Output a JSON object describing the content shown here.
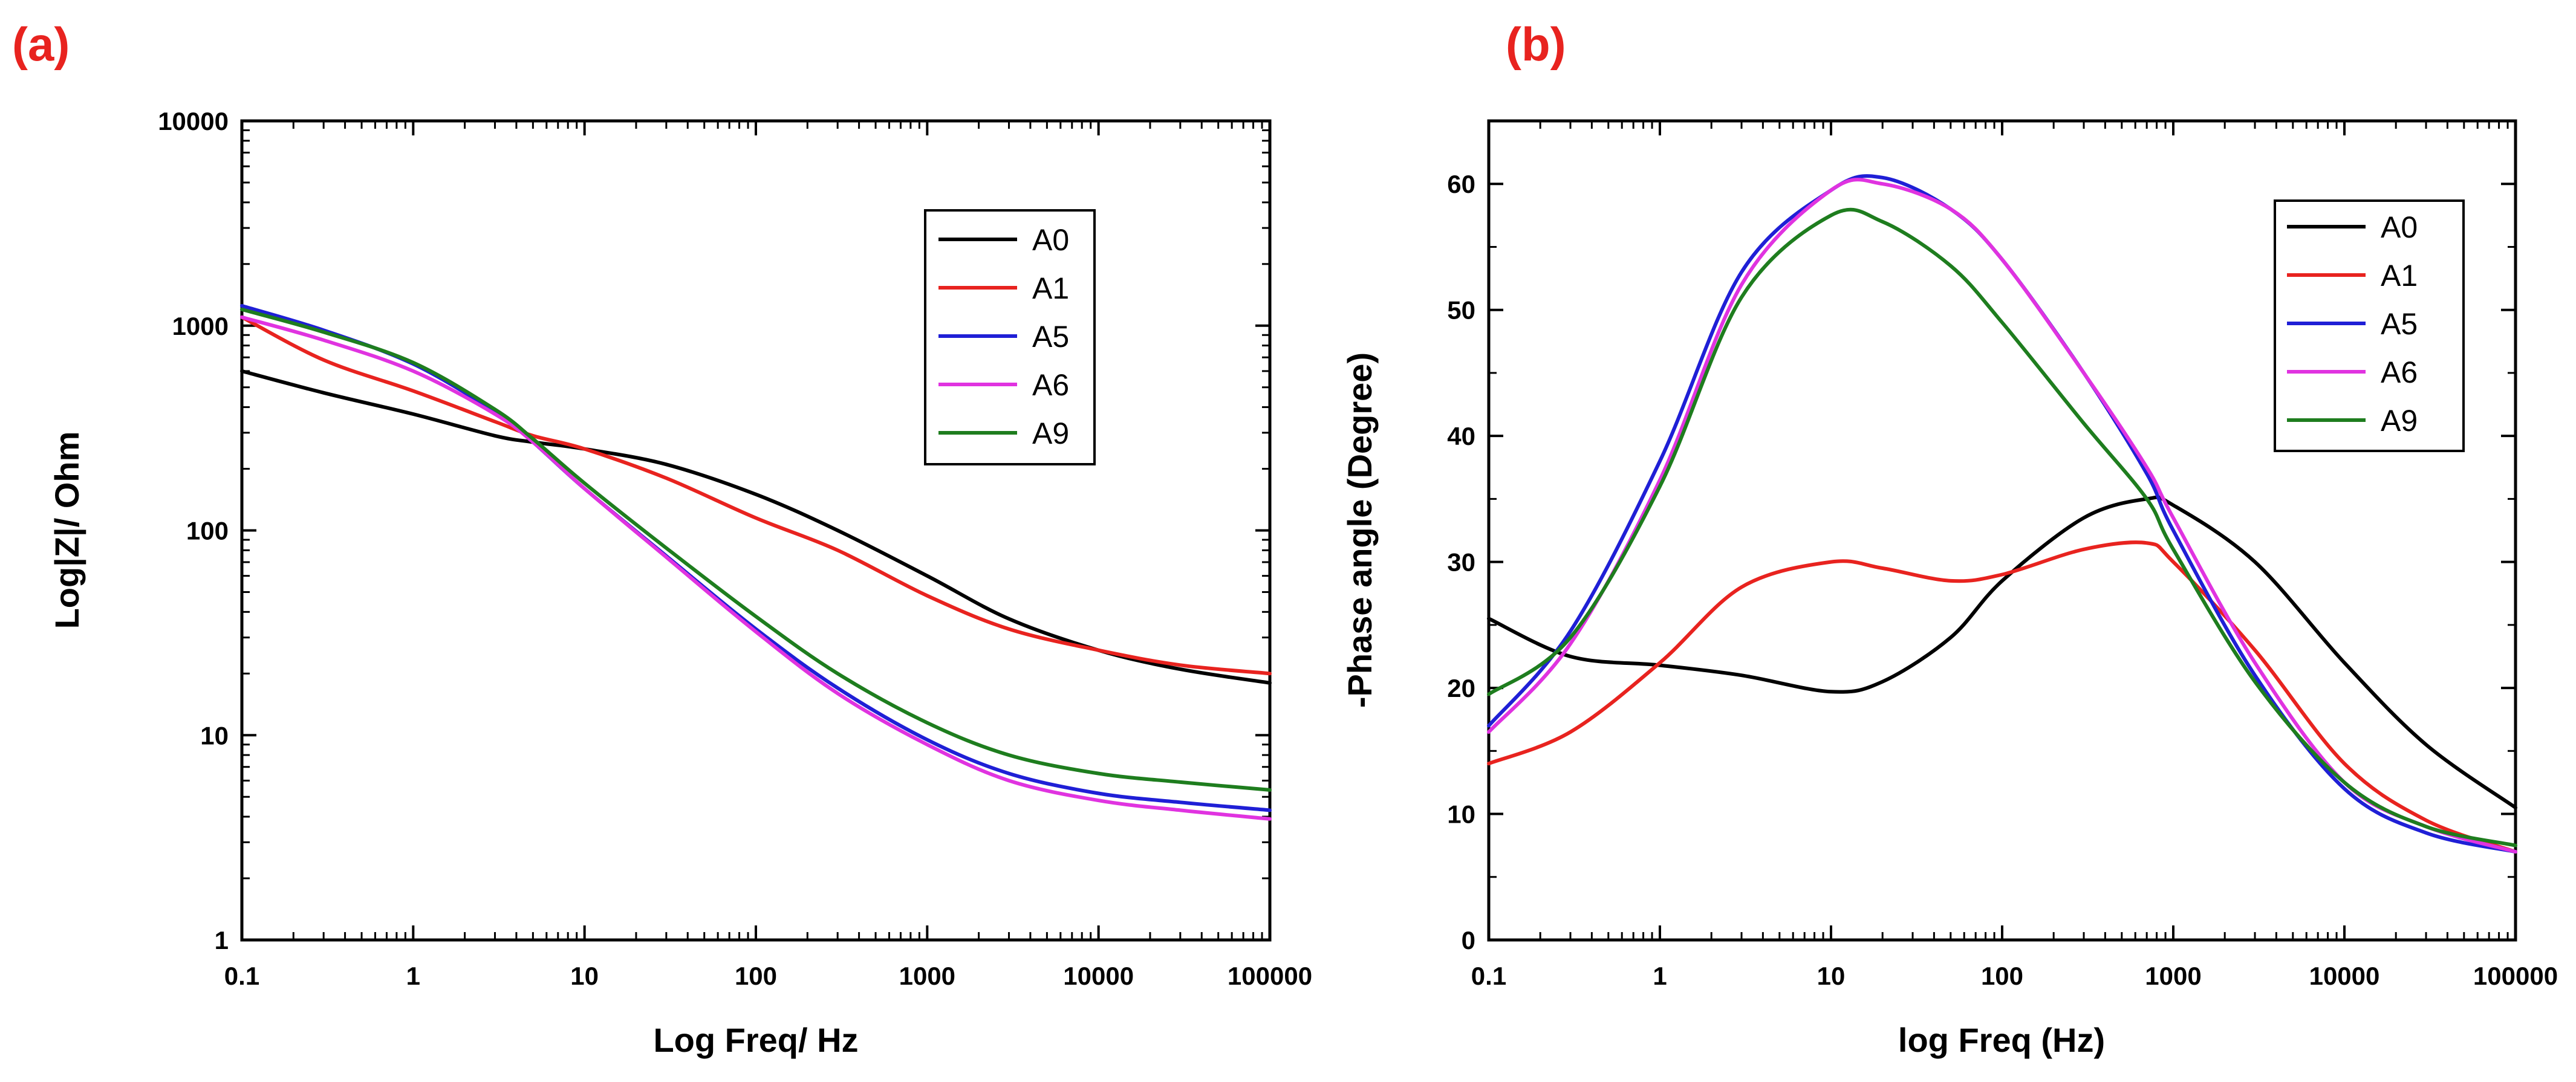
{
  "chart_data": [
    {
      "type": "line",
      "panel_label": "(a)",
      "title": "",
      "xlabel": "Log Freq/ Hz",
      "ylabel": "Log|Z|/ Ohm",
      "xscale": "log",
      "yscale": "log",
      "xlim": [
        0.1,
        100000
      ],
      "ylim": [
        1,
        10000
      ],
      "xticks": [
        "0.1",
        "1",
        "10",
        "100",
        "1000",
        "10000",
        "100000"
      ],
      "yticks": [
        "1",
        "10",
        "100",
        "1000",
        "10000"
      ],
      "legend_position": "top-right",
      "x": [
        0.1,
        0.3,
        1,
        3,
        5,
        10,
        30,
        100,
        300,
        1000,
        3000,
        10000,
        30000,
        100000
      ],
      "series": [
        {
          "name": "A0",
          "color": "#000000",
          "values": [
            600,
            470,
            370,
            290,
            270,
            250,
            210,
            150,
            100,
            60,
            37,
            26,
            21,
            18
          ]
        },
        {
          "name": "A1",
          "color": "#e8231f",
          "values": [
            1100,
            680,
            480,
            340,
            290,
            250,
            180,
            115,
            80,
            48,
            33,
            26,
            22,
            20
          ]
        },
        {
          "name": "A5",
          "color": "#1f1fd6",
          "values": [
            1250,
            950,
            650,
            380,
            270,
            160,
            75,
            33,
            17,
            9.5,
            6.5,
            5.2,
            4.7,
            4.3
          ]
        },
        {
          "name": "A6",
          "color": "#e033e0",
          "values": [
            1100,
            850,
            600,
            370,
            270,
            160,
            74,
            32,
            16,
            9,
            6,
            4.8,
            4.3,
            3.9
          ]
        },
        {
          "name": "A9",
          "color": "#1e7d1e",
          "values": [
            1200,
            930,
            660,
            390,
            280,
            170,
            82,
            38,
            20,
            11.5,
            8,
            6.5,
            5.9,
            5.4
          ]
        }
      ]
    },
    {
      "type": "line",
      "panel_label": "(b)",
      "title": "",
      "xlabel": "log Freq (Hz)",
      "ylabel": "-Phase  angle (Degree)",
      "xscale": "log",
      "yscale": "linear",
      "xlim": [
        0.1,
        100000
      ],
      "ylim": [
        0,
        65
      ],
      "xticks": [
        "0.1",
        "1",
        "10",
        "100",
        "1000",
        "10000",
        "100000"
      ],
      "yticks": [
        "0",
        "10",
        "20",
        "30",
        "40",
        "50",
        "60"
      ],
      "legend_position": "top-right",
      "x": [
        0.1,
        0.3,
        1,
        3,
        10,
        20,
        50,
        100,
        300,
        700,
        1000,
        3000,
        10000,
        30000,
        100000
      ],
      "series": [
        {
          "name": "A0",
          "color": "#000000",
          "values": [
            25.5,
            22.5,
            21.8,
            21,
            19.7,
            20.5,
            24,
            28.5,
            33.5,
            35,
            34.5,
            30,
            22,
            15.5,
            10.5
          ]
        },
        {
          "name": "A1",
          "color": "#e8231f",
          "values": [
            14,
            16.5,
            22,
            28,
            30,
            29.5,
            28.5,
            29,
            31,
            31.5,
            30,
            23,
            14,
            9.5,
            7
          ]
        },
        {
          "name": "A5",
          "color": "#1f1fd6",
          "values": [
            17,
            24.5,
            38,
            53,
            59.5,
            60.5,
            58,
            54,
            45,
            37,
            32.5,
            21,
            12,
            8.5,
            7
          ]
        },
        {
          "name": "A6",
          "color": "#e033e0",
          "values": [
            16.5,
            23.5,
            36.5,
            52,
            59.5,
            60,
            58,
            54,
            45,
            37.5,
            33.5,
            22,
            12.5,
            9,
            7
          ]
        },
        {
          "name": "A9",
          "color": "#1e7d1e",
          "values": [
            19.5,
            24,
            36,
            51,
            57.5,
            57,
            53.5,
            49,
            41,
            35,
            31,
            20.5,
            12.5,
            9,
            7.5
          ]
        }
      ]
    }
  ]
}
